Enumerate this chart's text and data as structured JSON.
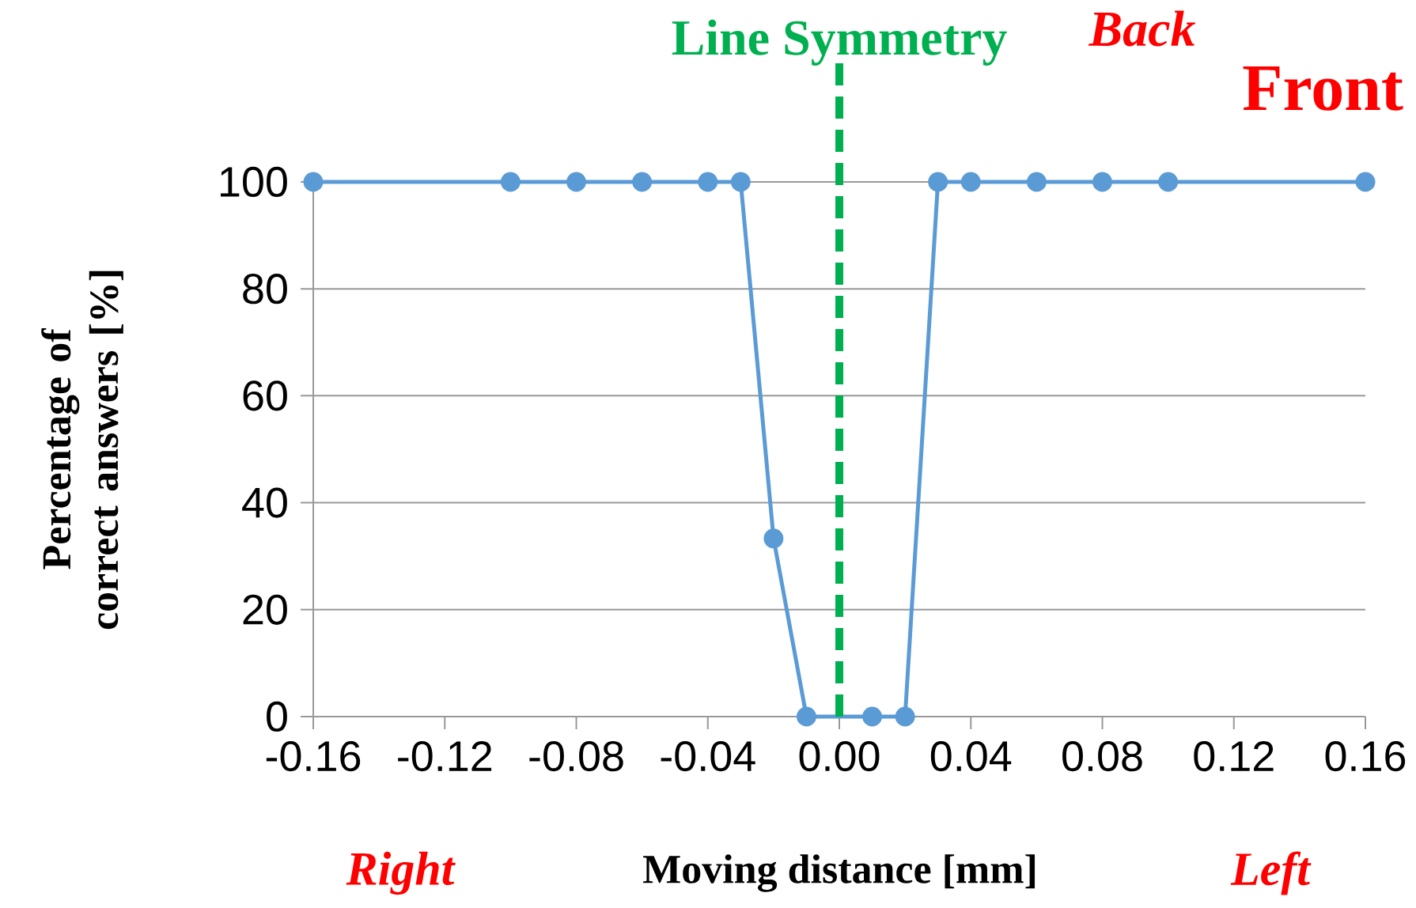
{
  "chart_data": {
    "type": "line",
    "xlabel": "Moving distance [mm]",
    "ylabel": "Percentage of correct answers [%]",
    "x": [
      -0.16,
      -0.1,
      -0.08,
      -0.06,
      -0.04,
      -0.03,
      -0.02,
      -0.01,
      0.01,
      0.02,
      0.03,
      0.04,
      0.06,
      0.08,
      0.1,
      0.16
    ],
    "series": [
      {
        "color": "#5b9bd5",
        "values": [
          100,
          100,
          100,
          100,
          100,
          100,
          33.3,
          0,
          0,
          0,
          100,
          100,
          100,
          100,
          100,
          100
        ]
      }
    ],
    "xlim": [
      -0.16,
      0.16
    ],
    "xticks": [
      -0.16,
      -0.12,
      -0.08,
      -0.04,
      {
        "value": 0,
        "label": "0.00"
      },
      0.04,
      0.08,
      0.12,
      0.16
    ],
    "ylim": [
      0,
      100
    ],
    "yticks": [
      0,
      20,
      40,
      60,
      80,
      100
    ],
    "grid": "y",
    "marker": "circle",
    "line_style": "solid",
    "ref_lines": [
      {
        "axis": "x",
        "value": 0,
        "label": "Line Symmetry",
        "color": "#00b050",
        "line_style": "dashed"
      }
    ],
    "annotations": [
      "Back",
      "Front",
      "Right",
      "Left"
    ]
  }
}
